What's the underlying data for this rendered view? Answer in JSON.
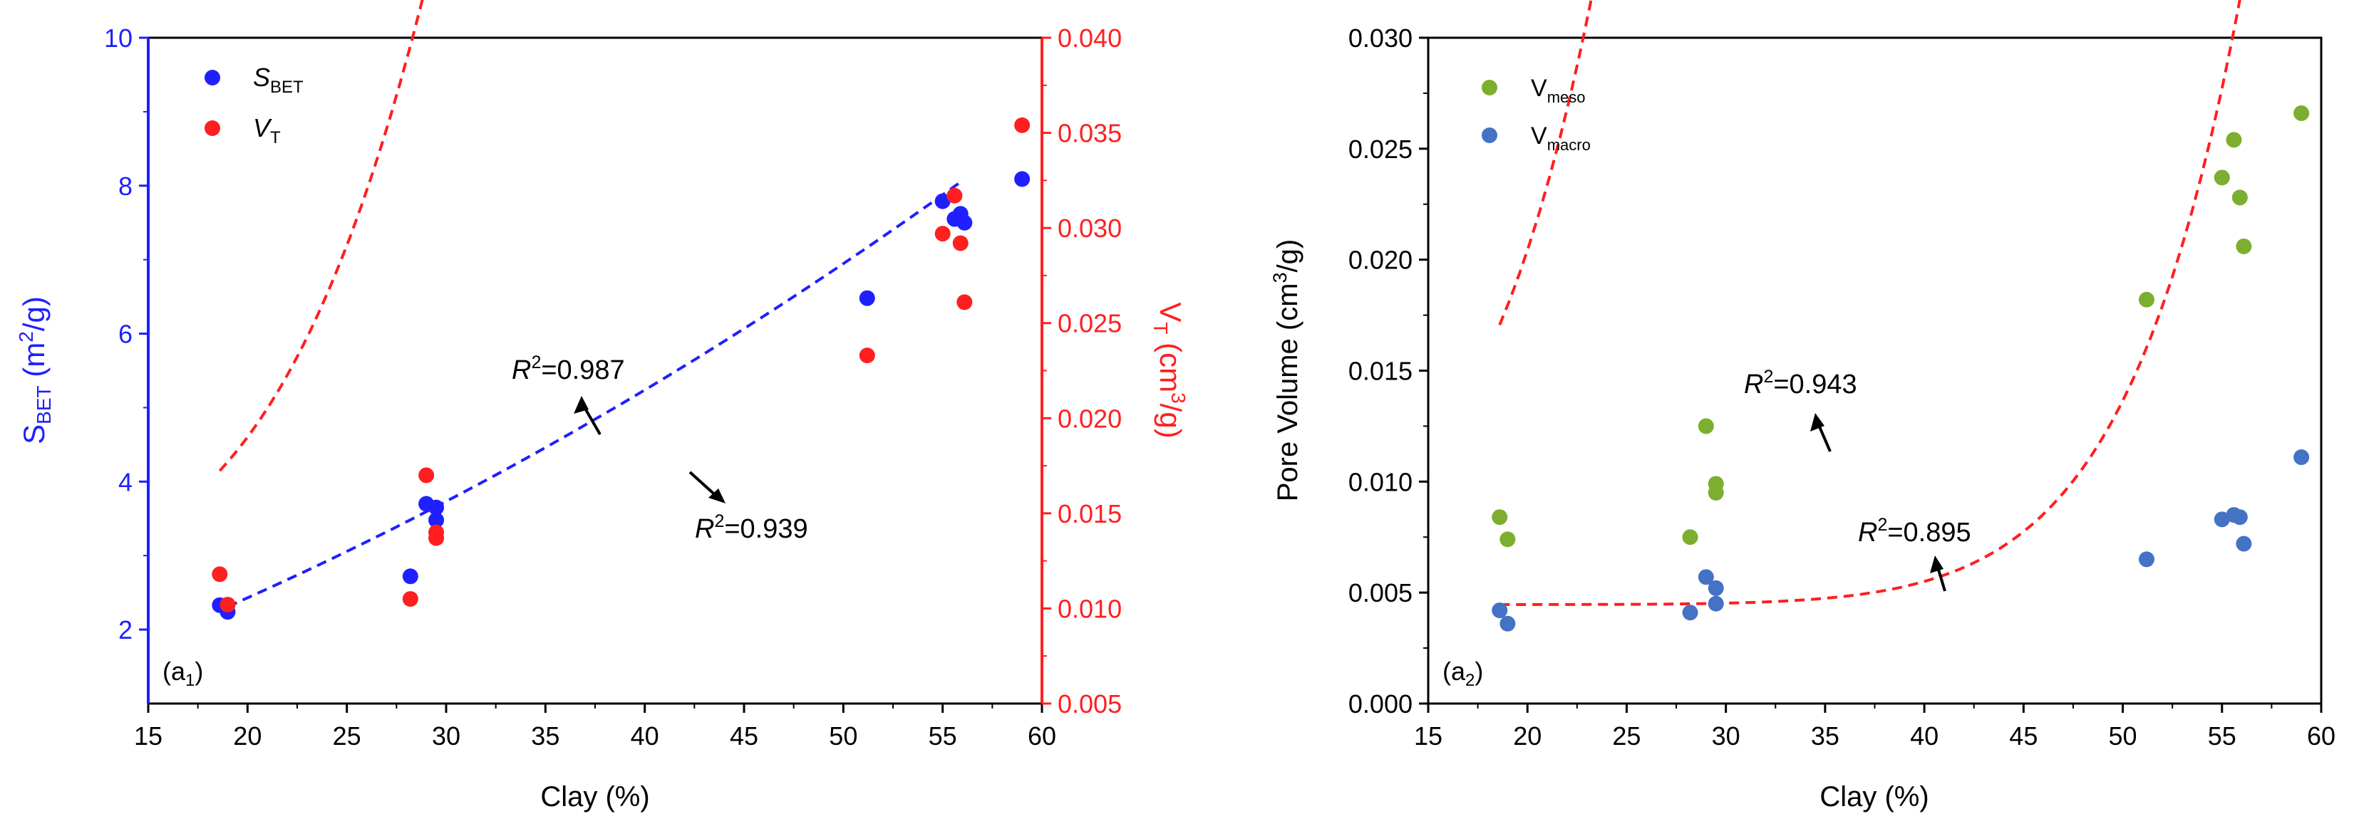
{
  "chart_data": [
    {
      "type": "scatter",
      "panel_label": {
        "main": "(a",
        "sub": "1",
        "close": ")"
      },
      "xlabel": "Clay (%)",
      "xlim": [
        15,
        60
      ],
      "xticks": [
        15,
        20,
        25,
        30,
        35,
        40,
        45,
        50,
        55,
        60
      ],
      "left_axis": {
        "label": {
          "main": "S",
          "sub": "BET",
          "rest": " (m",
          "sup": "2",
          "end": "/g)"
        },
        "ylim": [
          1,
          10
        ],
        "ticks": [
          2,
          4,
          6,
          8,
          10
        ],
        "color": "#1f1fff"
      },
      "right_axis": {
        "label": {
          "main": "V",
          "sub": "T",
          "rest": " (cm",
          "sup": "3",
          "end": "/g)"
        },
        "ylim": [
          0.005,
          0.04
        ],
        "ticks": [
          "0.005",
          "0.010",
          "0.015",
          "0.020",
          "0.025",
          "0.030",
          "0.035",
          "0.040"
        ],
        "color": "#ff1f1f"
      },
      "legend": {
        "position": "top-left",
        "items": [
          {
            "main": "S",
            "sub": "BET",
            "color": "#1f1fff"
          },
          {
            "main": "V",
            "sub": "T",
            "color": "#ff1f1f"
          }
        ]
      },
      "series": [
        {
          "name": "SBET",
          "axis": "left",
          "color": "#1f1fff",
          "x": [
            18.6,
            19.0,
            28.2,
            29.0,
            29.5,
            29.5,
            51.2,
            55.0,
            55.6,
            55.9,
            56.1,
            59.0
          ],
          "y": [
            2.33,
            2.24,
            2.72,
            3.7,
            3.65,
            3.48,
            6.48,
            7.79,
            7.55,
            7.62,
            7.5,
            8.09
          ],
          "fit": {
            "r2_base": "R",
            "r2_sup": "2",
            "r2_value": "=0.987",
            "x_range": [
              19.0,
              56.0
            ],
            "coef": [
              0.4305,
              0.07972,
              0.001012
            ]
          }
        },
        {
          "name": "VT",
          "axis": "right",
          "color": "#ff1f1f",
          "x": [
            18.6,
            19.0,
            28.2,
            29.0,
            29.5,
            29.5,
            51.2,
            55.0,
            55.6,
            55.9,
            56.1,
            59.0
          ],
          "y": [
            0.0118,
            0.0102,
            0.0105,
            0.017,
            0.014,
            0.0137,
            0.0233,
            0.0297,
            0.0317,
            0.0292,
            0.0261,
            0.0354
          ],
          "fit": {
            "r2_base": "R",
            "r2_sup": "2",
            "r2_value": "=0.939",
            "x_range": [
              18.6,
              59.0
            ],
            "coef": [
              0.01191,
              5e-08,
              3.96
            ]
          }
        }
      ]
    },
    {
      "type": "scatter",
      "panel_label": {
        "main": "(a",
        "sub": "2",
        "close": ")"
      },
      "xlabel": "Clay (%)",
      "xlim": [
        15,
        60
      ],
      "xticks": [
        15,
        20,
        25,
        30,
        35,
        40,
        45,
        50,
        55,
        60
      ],
      "left_axis": {
        "label": {
          "main": "Pore Volume (cm",
          "sup": "3",
          "end": "/g)"
        },
        "ylim": [
          0,
          0.03
        ],
        "ticks": [
          "0.000",
          "0.005",
          "0.010",
          "0.015",
          "0.020",
          "0.025",
          "0.030"
        ],
        "color": "#000000"
      },
      "legend": {
        "position": "top-left",
        "items": [
          {
            "main": "V",
            "sub": "meso",
            "color": "#7cae2f"
          },
          {
            "main": "V",
            "sub": "macro",
            "color": "#4472c4"
          }
        ]
      },
      "series": [
        {
          "name": "Vmeso",
          "color": "#7cae2f",
          "x": [
            18.6,
            19.0,
            28.2,
            29.0,
            29.5,
            29.5,
            51.2,
            55.0,
            55.6,
            55.9,
            56.1,
            59.0
          ],
          "y": [
            0.0084,
            0.0074,
            0.0075,
            0.0125,
            0.0099,
            0.0095,
            0.0182,
            0.0237,
            0.0254,
            0.0228,
            0.0206,
            0.0266
          ],
          "fit": {
            "r2_base": "R",
            "r2_sup": "2",
            "r2_value": "=0.943",
            "x_range": [
              18.6,
              59.0
            ],
            "coef": [
              0.00785,
              3.2e-08,
              4.3
            ]
          }
        },
        {
          "name": "Vmacro",
          "color": "#4472c4",
          "x": [
            18.6,
            19.0,
            28.2,
            29.0,
            29.5,
            29.5,
            51.2,
            55.0,
            55.6,
            55.9,
            56.1,
            59.0
          ],
          "y": [
            0.0042,
            0.0036,
            0.0041,
            0.0057,
            0.0052,
            0.0045,
            0.0065,
            0.0083,
            0.0085,
            0.0084,
            0.0072,
            0.0111
          ],
          "fit": {
            "r2_base": "R",
            "r2_sup": "2",
            "r2_value": "=0.895",
            "x_range": [
              18.6,
              59.0
            ],
            "coef": [
              0.00446,
              2.5e-19,
              9.75
            ]
          }
        }
      ]
    }
  ]
}
